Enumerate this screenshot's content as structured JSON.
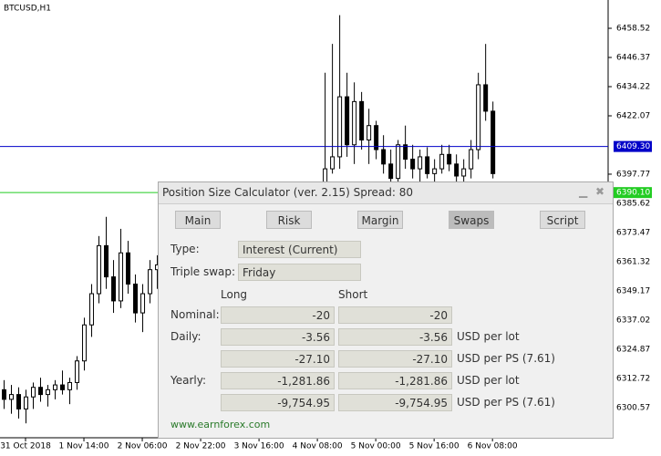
{
  "chart": {
    "type": "candlestick",
    "symbol": "BTCUSD,H1",
    "ylim": [
      6288.0,
      6470.3
    ],
    "yticks": [
      6458.52,
      6446.37,
      6434.22,
      6422.07,
      6397.77,
      6385.62,
      6373.47,
      6361.32,
      6349.17,
      6337.02,
      6324.87,
      6312.72,
      6300.57
    ],
    "xlim": [
      -0.5,
      82.6
    ],
    "xticks": [
      {
        "value": 3,
        "label": "31 Oct 2018"
      },
      {
        "value": 11,
        "label": "1 Nov 14:00"
      },
      {
        "value": 19,
        "label": "2 Nov 06:00"
      },
      {
        "value": 27,
        "label": "2 Nov 22:00"
      },
      {
        "value": 35,
        "label": "3 Nov 16:00"
      },
      {
        "value": 43,
        "label": "4 Nov 08:00"
      },
      {
        "value": 51,
        "label": "5 Nov 00:00"
      },
      {
        "value": 59,
        "label": "5 Nov 16:00"
      },
      {
        "value": 67,
        "label": "6 Nov 08:00"
      }
    ],
    "levels": [
      {
        "price": 6409.3,
        "label": "6409.30",
        "color": "#0000c8"
      },
      {
        "price": 6390.1,
        "label": "6390.10",
        "color": "#22cc22"
      }
    ],
    "candles": {
      "x": [
        0,
        1,
        2,
        3,
        4,
        5,
        6,
        7,
        8,
        9,
        10,
        11,
        12,
        13,
        14,
        15,
        16,
        17,
        18,
        19,
        20,
        21,
        44,
        45,
        46,
        47,
        48,
        49,
        50,
        51,
        52,
        53,
        54,
        55,
        56,
        57,
        58,
        59,
        60,
        61,
        62,
        63,
        64,
        65,
        66,
        67
      ],
      "open": [
        6308,
        6304,
        6306,
        6300,
        6305,
        6309,
        6306,
        6308,
        6310,
        6308,
        6311,
        6320,
        6335,
        6348,
        6368,
        6355,
        6345,
        6365,
        6352,
        6340,
        6348,
        6358,
        6390,
        6400,
        6405,
        6430,
        6410,
        6428,
        6412,
        6418,
        6408,
        6402,
        6396,
        6410,
        6404,
        6400,
        6405,
        6398,
        6400,
        6406,
        6402,
        6397,
        6400,
        6408,
        6435,
        6424
      ],
      "high": [
        6312,
        6310,
        6309,
        6308,
        6311,
        6313,
        6310,
        6312,
        6316,
        6313,
        6322,
        6338,
        6352,
        6372,
        6380,
        6362,
        6375,
        6370,
        6356,
        6352,
        6362,
        6364,
        6440,
        6452,
        6464,
        6440,
        6436,
        6432,
        6425,
        6420,
        6414,
        6408,
        6412,
        6418,
        6410,
        6408,
        6409,
        6404,
        6410,
        6410,
        6406,
        6404,
        6412,
        6440,
        6452,
        6428
      ],
      "low": [
        6300,
        6298,
        6296,
        6294,
        6300,
        6303,
        6301,
        6304,
        6306,
        6302,
        6308,
        6316,
        6330,
        6344,
        6350,
        6340,
        6342,
        6348,
        6336,
        6332,
        6344,
        6350,
        6388,
        6398,
        6400,
        6405,
        6402,
        6408,
        6402,
        6404,
        6398,
        6392,
        6394,
        6400,
        6396,
        6394,
        6396,
        6392,
        6398,
        6399,
        6394,
        6392,
        6396,
        6404,
        6420,
        6396
      ],
      "close": [
        6304,
        6306,
        6300,
        6305,
        6309,
        6306,
        6308,
        6310,
        6308,
        6311,
        6320,
        6335,
        6348,
        6368,
        6355,
        6345,
        6365,
        6352,
        6340,
        6348,
        6358,
        6360,
        6400,
        6405,
        6430,
        6410,
        6428,
        6412,
        6418,
        6408,
        6402,
        6396,
        6410,
        6404,
        6400,
        6405,
        6398,
        6400,
        6406,
        6402,
        6397,
        6400,
        6408,
        6435,
        6424,
        6398
      ]
    }
  },
  "panel": {
    "title": "Position Size Calculator (ver. 2.15) Spread: 80",
    "tabs": [
      "Main",
      "Risk",
      "Margin",
      "Swaps",
      "Script"
    ],
    "active_tab": "Swaps",
    "type_label": "Type:",
    "type_value": "Interest (Current)",
    "triple_label": "Triple swap:",
    "triple_value": "Friday",
    "columns": [
      "Long",
      "Short"
    ],
    "rows": [
      {
        "label": "Nominal:",
        "long": "-20",
        "short": "-20"
      },
      {
        "label": "Daily:",
        "long": "-3.56",
        "short": "-3.56",
        "unit": "USD per lot"
      },
      {
        "long": "-27.10",
        "short": "-27.10",
        "unit": "USD per PS (7.61)"
      },
      {
        "label": "Yearly:",
        "long": "-1,281.86",
        "short": "-1,281.86",
        "unit": "USD per lot"
      },
      {
        "long": "-9,754.95",
        "short": "-9,754.95",
        "unit": "USD per PS (7.61)"
      }
    ],
    "footer": "www.earnforex.com"
  }
}
